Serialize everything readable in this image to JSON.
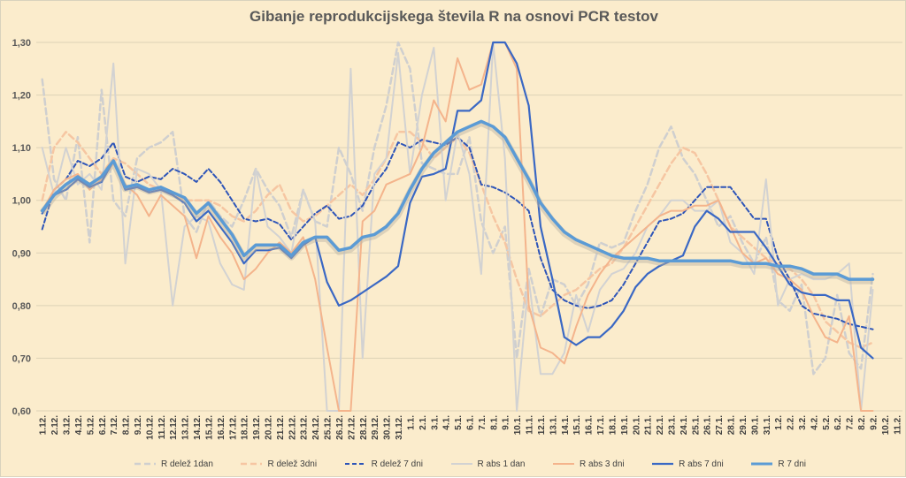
{
  "chart_data": {
    "type": "line",
    "title": "Gibanje reprodukcijskega števila R na osnovi PCR testov",
    "xlabel": "",
    "ylabel": "",
    "ylim": [
      0.6,
      1.3
    ],
    "y_ticks": [
      "0,60",
      "0,70",
      "0,80",
      "0,90",
      "1,00",
      "1,10",
      "1,20",
      "1,30"
    ],
    "grid": true,
    "legend_position": "bottom",
    "categories": [
      "1.12.",
      "2.12.",
      "3.12.",
      "4.12.",
      "5.12.",
      "6.12.",
      "7.12.",
      "8.12.",
      "9.12.",
      "10.12.",
      "11.12.",
      "12.12.",
      "13.12.",
      "14.12.",
      "15.12.",
      "16.12.",
      "17.12.",
      "18.12.",
      "19.12.",
      "20.12.",
      "21.12.",
      "22.12.",
      "23.12.",
      "24.12.",
      "25.12.",
      "26.12.",
      "27.12.",
      "28.12.",
      "29.12.",
      "30.12.",
      "31.12.",
      "1.1.",
      "2.1.",
      "3.1.",
      "4.1.",
      "5.1.",
      "6.1.",
      "7.1.",
      "8.1.",
      "9.1.",
      "10.1.",
      "11.1.",
      "12.1.",
      "13.1.",
      "14.1.",
      "15.1.",
      "16.1.",
      "17.1.",
      "18.1.",
      "19.1.",
      "20.1.",
      "21.1.",
      "22.1.",
      "23.1.",
      "24.1.",
      "25.1.",
      "26.1.",
      "27.1.",
      "28.1.",
      "29.1.",
      "30.1.",
      "31.1.",
      "1.2.",
      "2.2.",
      "3.2.",
      "4.2.",
      "5.2.",
      "6.2.",
      "7.2.",
      "8.2.",
      "9.2.",
      "10.2.",
      "11.2."
    ],
    "series": [
      {
        "name": "R delež 1dan",
        "color": "#cfcfcf",
        "dash": "7,4",
        "width": 2.5,
        "values": [
          1.23,
          1.04,
          1.0,
          1.12,
          0.92,
          1.21,
          1.0,
          0.97,
          1.08,
          1.1,
          1.11,
          1.13,
          0.97,
          0.94,
          1.0,
          0.97,
          0.95,
          1.0,
          1.06,
          1.02,
          0.99,
          0.93,
          1.02,
          0.96,
          0.95,
          1.1,
          1.05,
          0.98,
          1.1,
          1.18,
          1.3,
          1.25,
          1.07,
          1.06,
          1.05,
          1.05,
          1.12,
          0.96,
          0.9,
          0.95,
          0.7,
          0.87,
          0.78,
          0.85,
          0.84,
          0.8,
          0.84,
          0.92,
          0.91,
          0.92,
          0.98,
          1.03,
          1.1,
          1.14,
          1.08,
          1.05,
          1.0,
          0.95,
          0.97,
          0.92,
          0.88,
          0.93,
          0.81,
          0.79,
          0.84,
          0.67,
          0.7,
          0.82,
          0.71,
          0.68,
          0.86,
          null,
          null
        ]
      },
      {
        "name": "R delež 3dni",
        "color": "#f6c6a2",
        "dash": "7,4",
        "width": 2.5,
        "values": [
          1.0,
          1.1,
          1.13,
          1.11,
          1.08,
          1.05,
          1.08,
          1.07,
          1.05,
          1.03,
          1.02,
          1.01,
          1.0,
          1.0,
          1.0,
          0.99,
          0.97,
          0.96,
          0.98,
          1.01,
          1.03,
          0.98,
          0.96,
          0.97,
          0.99,
          1.01,
          1.03,
          1.01,
          1.04,
          1.08,
          1.13,
          1.13,
          1.11,
          1.08,
          1.1,
          1.12,
          1.09,
          1.03,
          0.97,
          0.92,
          0.85,
          0.79,
          0.78,
          0.8,
          0.82,
          0.83,
          0.85,
          0.87,
          0.88,
          0.91,
          0.95,
          0.99,
          1.03,
          1.07,
          1.1,
          1.09,
          1.05,
          1.0,
          0.95,
          0.93,
          0.91,
          0.89,
          0.88,
          0.87,
          0.85,
          0.82,
          0.77,
          0.75,
          0.73,
          0.72,
          0.73,
          null,
          null
        ]
      },
      {
        "name": "R delež 7 dni",
        "color": "#2e55b8",
        "dash": "5,3",
        "width": 2,
        "values": [
          0.945,
          1.02,
          1.04,
          1.075,
          1.065,
          1.08,
          1.11,
          1.045,
          1.035,
          1.045,
          1.04,
          1.06,
          1.05,
          1.035,
          1.06,
          1.035,
          1.0,
          0.965,
          0.96,
          0.965,
          0.955,
          0.925,
          0.95,
          0.975,
          0.99,
          0.965,
          0.97,
          0.99,
          1.03,
          1.06,
          1.11,
          1.1,
          1.115,
          1.11,
          1.105,
          1.12,
          1.1,
          1.03,
          1.025,
          1.015,
          1.0,
          0.98,
          0.89,
          0.83,
          0.81,
          0.8,
          0.795,
          0.8,
          0.81,
          0.84,
          0.88,
          0.92,
          0.96,
          0.965,
          0.975,
          1.0,
          1.025,
          1.025,
          1.025,
          0.995,
          0.965,
          0.965,
          0.89,
          0.85,
          0.8,
          0.785,
          0.78,
          0.775,
          0.765,
          0.76,
          0.755,
          null,
          null
        ]
      },
      {
        "name": "R abs 1 dan",
        "color": "#d2d2d2",
        "dash": "",
        "width": 2,
        "values": [
          1.1,
          1.01,
          1.1,
          1.03,
          1.05,
          1.02,
          1.26,
          0.88,
          1.06,
          1.05,
          1.02,
          0.8,
          0.95,
          0.97,
          0.96,
          0.88,
          0.84,
          0.83,
          1.06,
          0.95,
          0.93,
          0.9,
          1.02,
          0.96,
          0.6,
          0.6,
          1.25,
          0.7,
          1.05,
          1.08,
          1.28,
          1.05,
          1.2,
          1.29,
          1.0,
          1.13,
          1.05,
          0.86,
          1.3,
          1.08,
          0.6,
          0.85,
          0.67,
          0.67,
          0.71,
          0.82,
          0.75,
          0.83,
          0.86,
          0.87,
          0.9,
          0.95,
          0.97,
          1.0,
          1.0,
          0.98,
          0.98,
          1.0,
          0.92,
          0.9,
          0.86,
          1.04,
          0.8,
          0.85,
          0.86,
          0.85,
          0.85,
          0.86,
          0.88,
          0.6,
          0.83,
          null,
          null
        ]
      },
      {
        "name": "R abs 3 dni",
        "color": "#f4b48c",
        "dash": "",
        "width": 2,
        "values": [
          0.98,
          1.02,
          1.04,
          1.05,
          1.02,
          1.04,
          1.07,
          1.03,
          1.01,
          0.97,
          1.01,
          0.99,
          0.97,
          0.89,
          0.97,
          0.93,
          0.9,
          0.85,
          0.87,
          0.9,
          0.92,
          0.9,
          0.93,
          0.85,
          0.72,
          0.6,
          0.6,
          0.96,
          0.98,
          1.03,
          1.04,
          1.05,
          1.1,
          1.19,
          1.15,
          1.27,
          1.21,
          1.22,
          1.3,
          1.3,
          1.25,
          0.8,
          0.72,
          0.71,
          0.69,
          0.76,
          0.82,
          0.86,
          0.89,
          0.91,
          0.93,
          0.95,
          0.97,
          0.98,
          0.98,
          0.99,
          0.99,
          1.0,
          0.95,
          0.9,
          0.88,
          0.89,
          0.86,
          0.85,
          0.83,
          0.78,
          0.74,
          0.73,
          0.78,
          0.6,
          0.6,
          null,
          null
        ]
      },
      {
        "name": "R abs 7 dni",
        "color": "#3a68c4",
        "dash": "",
        "width": 2.2,
        "values": [
          0.975,
          1.01,
          1.02,
          1.04,
          1.025,
          1.035,
          1.075,
          1.02,
          1.025,
          1.015,
          1.02,
          1.01,
          0.995,
          0.96,
          0.98,
          0.95,
          0.92,
          0.88,
          0.905,
          0.905,
          0.91,
          0.89,
          0.915,
          0.93,
          0.845,
          0.8,
          0.81,
          0.825,
          0.84,
          0.855,
          0.875,
          0.995,
          1.045,
          1.05,
          1.06,
          1.17,
          1.17,
          1.19,
          1.3,
          1.3,
          1.26,
          1.18,
          0.95,
          0.85,
          0.74,
          0.725,
          0.74,
          0.74,
          0.76,
          0.79,
          0.835,
          0.86,
          0.875,
          0.885,
          0.895,
          0.95,
          0.98,
          0.965,
          0.94,
          0.94,
          0.94,
          0.91,
          0.875,
          0.84,
          0.825,
          0.82,
          0.82,
          0.81,
          0.81,
          0.72,
          0.7,
          null,
          null
        ]
      },
      {
        "name": "R 7 dni",
        "color": "#5b9bd5",
        "dash": "",
        "width": 3.5,
        "values": [
          0.98,
          1.01,
          1.03,
          1.045,
          1.03,
          1.045,
          1.075,
          1.025,
          1.03,
          1.02,
          1.025,
          1.015,
          1.005,
          0.975,
          0.995,
          0.965,
          0.935,
          0.895,
          0.915,
          0.915,
          0.915,
          0.895,
          0.92,
          0.93,
          0.93,
          0.905,
          0.91,
          0.93,
          0.935,
          0.95,
          0.975,
          1.02,
          1.06,
          1.09,
          1.11,
          1.13,
          1.14,
          1.15,
          1.14,
          1.12,
          1.08,
          1.04,
          0.995,
          0.965,
          0.94,
          0.925,
          0.915,
          0.905,
          0.895,
          0.89,
          0.89,
          0.89,
          0.885,
          0.885,
          0.885,
          0.885,
          0.885,
          0.885,
          0.885,
          0.88,
          0.88,
          0.88,
          0.875,
          0.875,
          0.87,
          0.86,
          0.86,
          0.86,
          0.85,
          0.85,
          0.85,
          null,
          null
        ]
      }
    ]
  }
}
